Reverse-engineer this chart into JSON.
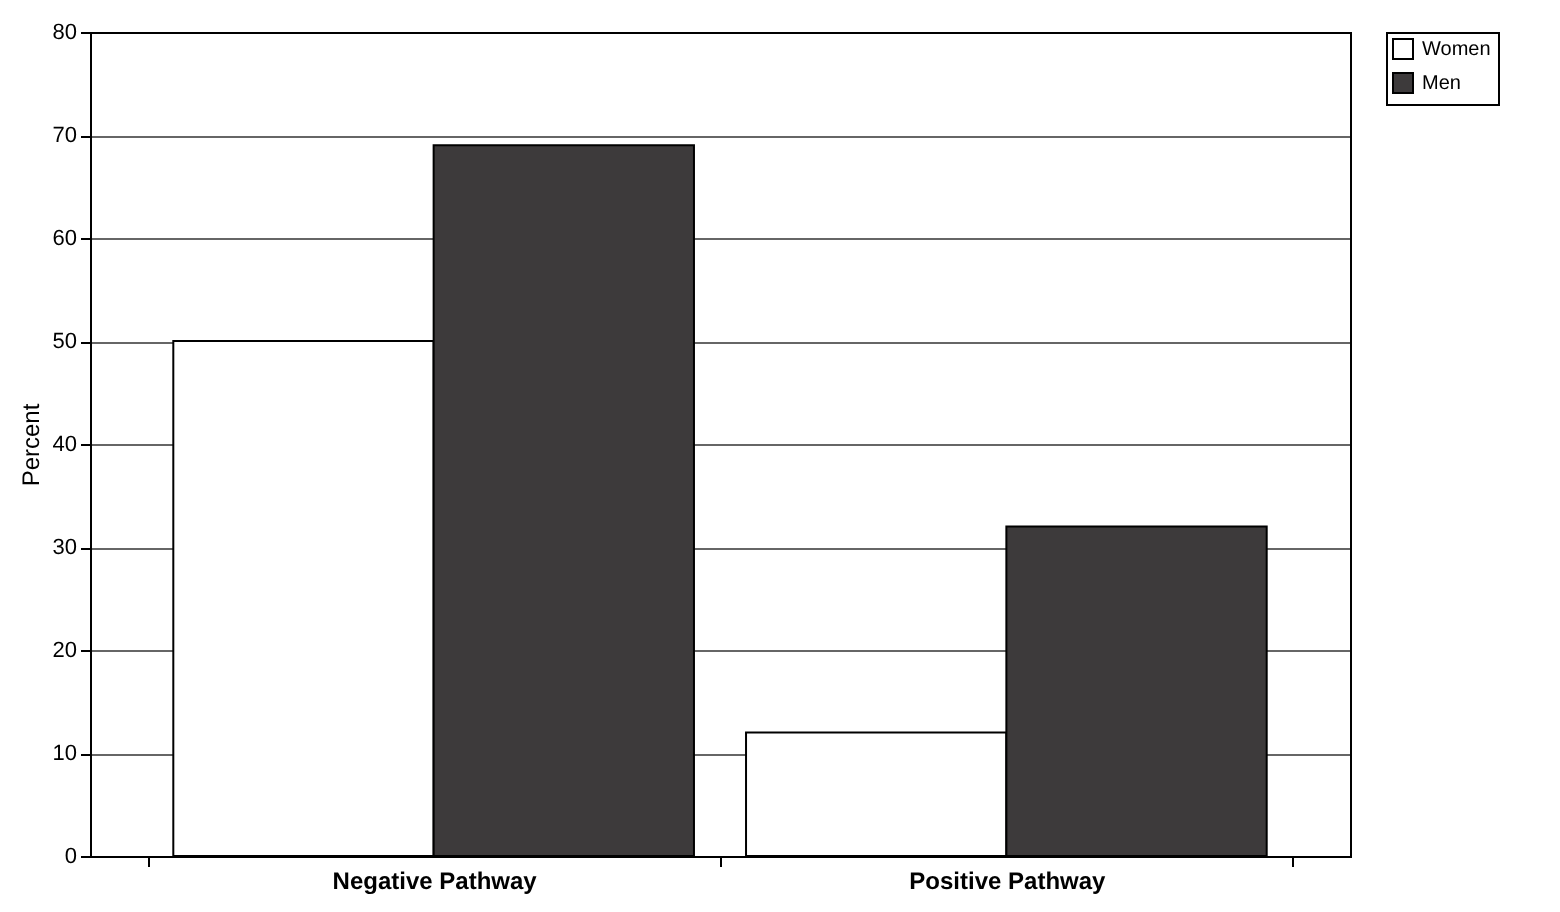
{
  "chart_data": {
    "type": "bar",
    "ylabel": "Percent",
    "categories": [
      "Negative Pathway",
      "Positive Pathway"
    ],
    "series": [
      {
        "name": "Women",
        "color": "#ffffff",
        "values": [
          50,
          12
        ]
      },
      {
        "name": "Men",
        "color": "#3d3a3b",
        "values": [
          69,
          32
        ]
      }
    ],
    "ylim": [
      0,
      80
    ],
    "yticks": [
      0,
      10,
      20,
      30,
      40,
      50,
      60,
      70,
      80
    ],
    "grid": "y",
    "legend": "right"
  }
}
